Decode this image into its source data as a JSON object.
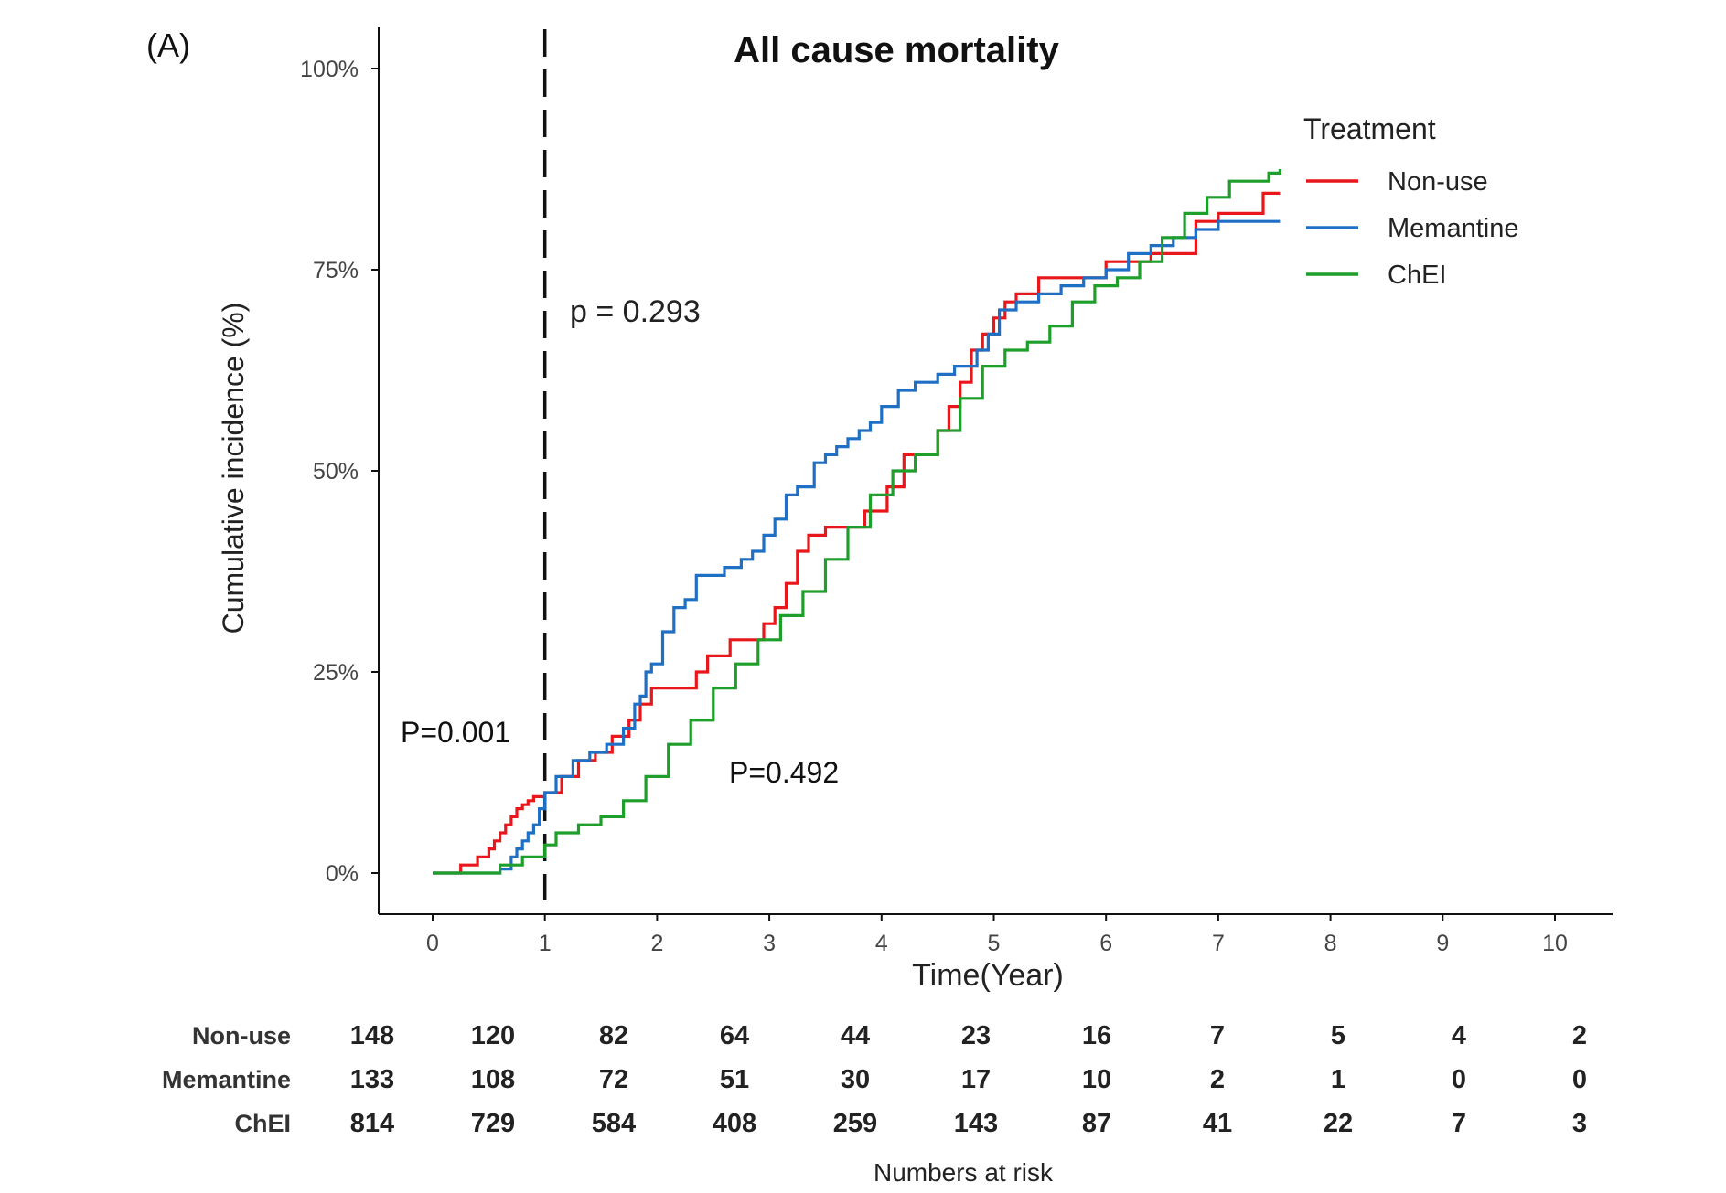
{
  "chart_data": {
    "type": "line",
    "panel_label": "(A)",
    "title": "All cause mortality",
    "xlabel": "Time(Year)",
    "ylabel": "Cumulative incidence (%)",
    "xlim": [
      0,
      10
    ],
    "ylim": [
      0,
      1
    ],
    "x_ticks": [
      "0",
      "1",
      "2",
      "3",
      "4",
      "5",
      "6",
      "7",
      "8",
      "9",
      "10"
    ],
    "y_ticks": [
      "0%",
      "25%",
      "50%",
      "75%",
      "100%"
    ],
    "grid": false,
    "legend": {
      "title": "Treatment",
      "position": "top-right",
      "entries": [
        "Non-use",
        "Memantine",
        "ChEI"
      ]
    },
    "reference_line": {
      "x": 1,
      "style": "dashed"
    },
    "annotations": {
      "overall_p": "p = 0.293",
      "early_p": "P=0.001",
      "late_p": "P=0.492"
    },
    "series": [
      {
        "name": "Non-use",
        "color": "#e8171b",
        "x": [
          0,
          0.25,
          0.4,
          0.5,
          0.55,
          0.6,
          0.65,
          0.7,
          0.75,
          0.8,
          0.85,
          0.9,
          1.0,
          1.15,
          1.3,
          1.45,
          1.6,
          1.75,
          1.85,
          1.95,
          2.1,
          2.3,
          2.35,
          2.45,
          2.55,
          2.65,
          2.8,
          2.95,
          3.05,
          3.15,
          3.25,
          3.35,
          3.5,
          3.7,
          3.85,
          4.05,
          4.2,
          4.35,
          4.5,
          4.6,
          4.7,
          4.8,
          4.9,
          5.0,
          5.1,
          5.2,
          5.4,
          5.6,
          5.9,
          6.0,
          6.2,
          6.4,
          6.6,
          6.8,
          7.0,
          7.2,
          7.4,
          7.55
        ],
        "y": [
          0,
          0.01,
          0.02,
          0.03,
          0.04,
          0.05,
          0.06,
          0.07,
          0.08,
          0.085,
          0.09,
          0.095,
          0.1,
          0.12,
          0.14,
          0.15,
          0.17,
          0.19,
          0.21,
          0.23,
          0.23,
          0.23,
          0.25,
          0.27,
          0.27,
          0.29,
          0.29,
          0.31,
          0.33,
          0.36,
          0.4,
          0.42,
          0.43,
          0.43,
          0.45,
          0.48,
          0.52,
          0.52,
          0.55,
          0.58,
          0.61,
          0.65,
          0.67,
          0.69,
          0.71,
          0.72,
          0.74,
          0.74,
          0.74,
          0.76,
          0.76,
          0.77,
          0.77,
          0.81,
          0.82,
          0.82,
          0.845,
          0.845
        ]
      },
      {
        "name": "Memantine",
        "color": "#1f6fc5",
        "x": [
          0,
          0.3,
          0.6,
          0.7,
          0.75,
          0.8,
          0.85,
          0.9,
          0.95,
          1.0,
          1.1,
          1.25,
          1.4,
          1.55,
          1.7,
          1.8,
          1.85,
          1.9,
          1.95,
          2.05,
          2.15,
          2.25,
          2.35,
          2.45,
          2.6,
          2.75,
          2.85,
          2.95,
          3.05,
          3.15,
          3.25,
          3.4,
          3.5,
          3.6,
          3.7,
          3.8,
          3.9,
          4.0,
          4.15,
          4.3,
          4.5,
          4.65,
          4.8,
          4.85,
          4.95,
          5.05,
          5.2,
          5.4,
          5.6,
          5.8,
          6.0,
          6.2,
          6.4,
          6.6,
          6.8,
          7.0,
          7.55
        ],
        "y": [
          0,
          0,
          0.005,
          0.02,
          0.03,
          0.04,
          0.05,
          0.06,
          0.08,
          0.1,
          0.12,
          0.14,
          0.15,
          0.16,
          0.18,
          0.21,
          0.22,
          0.25,
          0.26,
          0.3,
          0.33,
          0.34,
          0.37,
          0.37,
          0.38,
          0.39,
          0.4,
          0.42,
          0.44,
          0.47,
          0.48,
          0.51,
          0.52,
          0.53,
          0.54,
          0.55,
          0.56,
          0.58,
          0.6,
          0.61,
          0.62,
          0.63,
          0.63,
          0.65,
          0.67,
          0.7,
          0.71,
          0.72,
          0.73,
          0.74,
          0.75,
          0.77,
          0.78,
          0.79,
          0.8,
          0.81,
          0.81
        ]
      },
      {
        "name": "ChEI",
        "color": "#1e9e2a",
        "x": [
          0,
          0.4,
          0.6,
          0.8,
          1.0,
          1.1,
          1.3,
          1.5,
          1.7,
          1.9,
          2.1,
          2.3,
          2.5,
          2.7,
          2.9,
          3.1,
          3.3,
          3.5,
          3.7,
          3.9,
          4.1,
          4.3,
          4.5,
          4.7,
          4.9,
          5.1,
          5.3,
          5.5,
          5.7,
          5.9,
          6.1,
          6.3,
          6.5,
          6.7,
          6.9,
          7.1,
          7.3,
          7.45,
          7.55
        ],
        "y": [
          0,
          0,
          0.01,
          0.02,
          0.035,
          0.05,
          0.06,
          0.07,
          0.09,
          0.12,
          0.16,
          0.19,
          0.23,
          0.26,
          0.29,
          0.32,
          0.35,
          0.39,
          0.43,
          0.47,
          0.5,
          0.52,
          0.55,
          0.59,
          0.63,
          0.65,
          0.66,
          0.68,
          0.71,
          0.73,
          0.74,
          0.76,
          0.79,
          0.82,
          0.84,
          0.86,
          0.86,
          0.87,
          0.875
        ]
      }
    ],
    "risk_table": {
      "caption": "Numbers at risk",
      "times": [
        0,
        1,
        2,
        3,
        4,
        5,
        6,
        7,
        8,
        9,
        10
      ],
      "rows": [
        {
          "label": "Non-use",
          "values": [
            "148",
            "120",
            "82",
            "64",
            "44",
            "23",
            "16",
            "7",
            "5",
            "4",
            "2"
          ]
        },
        {
          "label": "Memantine",
          "values": [
            "133",
            "108",
            "72",
            "51",
            "30",
            "17",
            "10",
            "2",
            "1",
            "0",
            "0"
          ]
        },
        {
          "label": "ChEI",
          "values": [
            "814",
            "729",
            "584",
            "408",
            "259",
            "143",
            "87",
            "41",
            "22",
            "7",
            "3"
          ]
        }
      ]
    }
  }
}
